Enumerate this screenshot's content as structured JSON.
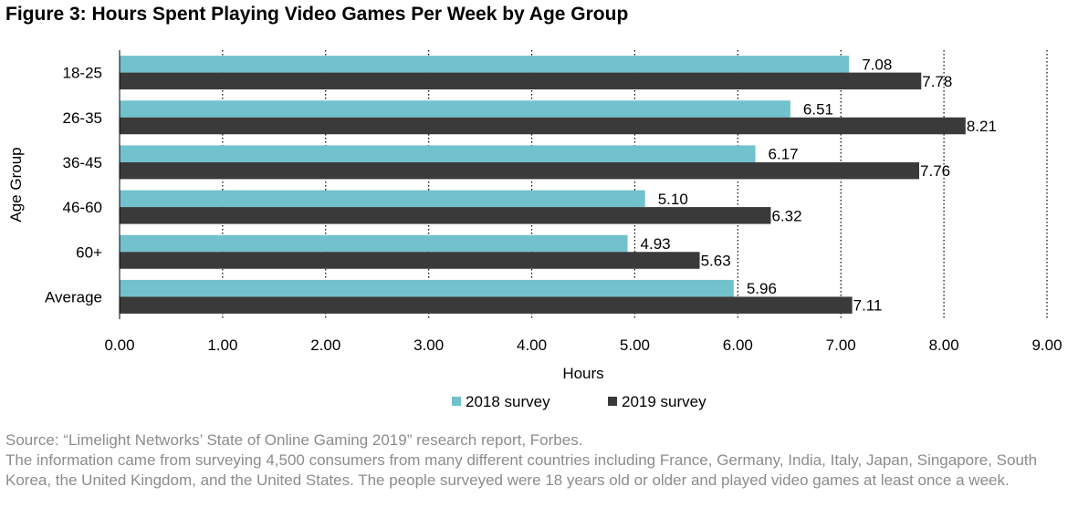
{
  "title": "Figure 3: Hours Spent Playing Video Games Per Week by Age Group",
  "source": "Source: “Limelight Networks’ State of Online Gaming 2019” research report, Forbes.",
  "note": "The information came from surveying 4,500 consumers from many different countries including France, Germany, India, Italy, Japan, Singapore, South Korea, the United Kingdom, and the United States. The people surveyed were 18 years old or older and played video games at least once a week.",
  "colors": {
    "series_2018": "#71c2cd",
    "series_2019": "#3a3a3a"
  },
  "chart_data": {
    "type": "bar",
    "orientation": "horizontal",
    "title": "Figure 3: Hours Spent Playing Video Games Per Week by Age Group",
    "xlabel": "Hours",
    "ylabel": "Age Group",
    "xlim": [
      0,
      9
    ],
    "x_ticks": [
      "0.00",
      "1.00",
      "2.00",
      "3.00",
      "4.00",
      "5.00",
      "6.00",
      "7.00",
      "8.00",
      "9.00"
    ],
    "grid": "vertical dotted",
    "legend_position": "bottom",
    "categories": [
      "18-25",
      "26-35",
      "36-45",
      "46-60",
      "60+",
      "Average"
    ],
    "series": [
      {
        "name": "2018 survey",
        "values": [
          7.08,
          6.51,
          6.17,
          5.1,
          4.93,
          5.96
        ],
        "labels": [
          "7.08",
          "6.51",
          "6.17",
          "5.10",
          "4.93",
          "5.96"
        ]
      },
      {
        "name": "2019 survey",
        "values": [
          7.78,
          8.21,
          7.76,
          6.32,
          5.63,
          7.11
        ],
        "labels": [
          "7.78",
          "8.21",
          "7.76",
          "6.32",
          "5.63",
          "7.11"
        ]
      }
    ]
  }
}
